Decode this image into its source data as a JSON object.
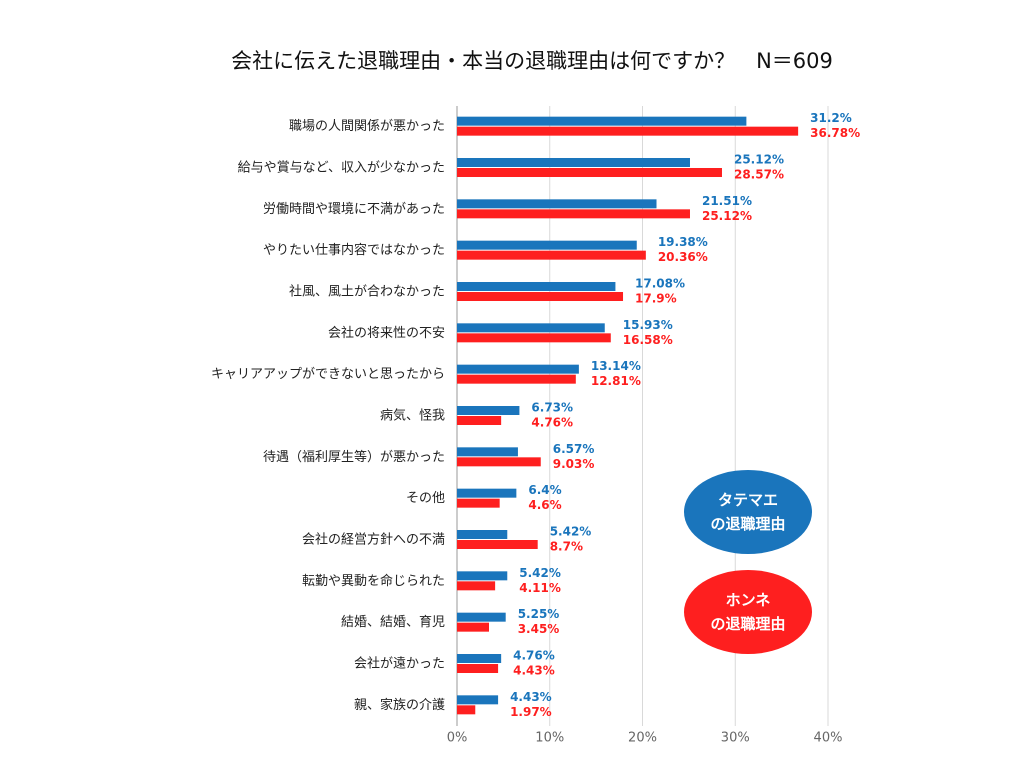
{
  "chart_data": {
    "type": "hbar",
    "title": "会社に伝えた退職理由・本当の退職理由は何ですか？　N＝609",
    "categories": [
      "職場の人間関係が悪かった",
      "給与や賞与など、収入が少なかった",
      "労働時間や環境に不満があった",
      "やりたい仕事内容ではなかった",
      "社風、風土が合わなかった",
      "会社の将来性の不安",
      "キャリアアップができないと思ったから",
      "病気、怪我",
      "待遇（福利厚生等）が悪かった",
      "その他",
      "会社の経営方針への不満",
      "転勤や異動を命じられた",
      "結婚、結婚、育児",
      "会社が遠かった",
      "親、家族の介護"
    ],
    "series": [
      {
        "name": "タテマエ\nの退職理由",
        "color": "#1a75bc",
        "values": [
          31.2,
          25.12,
          21.51,
          19.38,
          17.08,
          15.93,
          13.14,
          6.73,
          6.57,
          6.4,
          5.42,
          5.42,
          5.25,
          4.76,
          4.43
        ],
        "value_labels": [
          "31.2%",
          "25.12%",
          "21.51%",
          "19.38%",
          "17.08%",
          "15.93%",
          "13.14%",
          "6.73%",
          "6.57%",
          "6.4%",
          "5.42%",
          "5.42%",
          "5.25%",
          "4.76%",
          "4.43%"
        ]
      },
      {
        "name": "ホンネ\nの退職理由",
        "color": "#fe1f1f",
        "values": [
          36.78,
          28.57,
          25.12,
          20.36,
          17.9,
          16.58,
          12.81,
          4.76,
          9.03,
          4.6,
          8.7,
          4.11,
          3.45,
          4.43,
          1.97
        ],
        "value_labels": [
          "36.78%",
          "28.57%",
          "25.12%",
          "20.36%",
          "17.9%",
          "16.58%",
          "12.81%",
          "4.76%",
          "9.03%",
          "4.6%",
          "8.7%",
          "4.11%",
          "3.45%",
          "4.43%",
          "1.97%"
        ]
      }
    ],
    "xlim": [
      0,
      40
    ],
    "xticks": [
      {
        "value": 0,
        "label": "0%"
      },
      {
        "value": 10,
        "label": "10%"
      },
      {
        "value": 20,
        "label": "20%"
      },
      {
        "value": 30,
        "label": "30%"
      },
      {
        "value": 40,
        "label": "40%"
      }
    ],
    "grid": true,
    "legend_position": "right"
  }
}
